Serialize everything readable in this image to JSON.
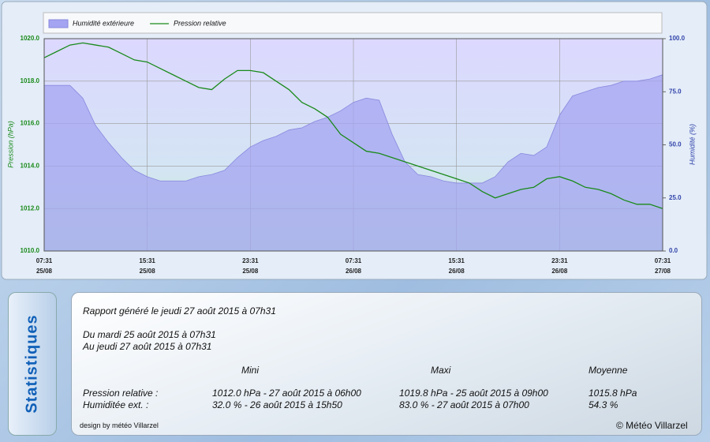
{
  "chart_data": {
    "type": "line",
    "legend": "top",
    "categories": [
      "07:31",
      null,
      null,
      null,
      null,
      null,
      null,
      null,
      "15:31",
      null,
      null,
      null,
      null,
      null,
      null,
      null,
      "23:31",
      null,
      null,
      null,
      null,
      null,
      null,
      null,
      "07:31",
      null,
      null,
      null,
      null,
      null,
      null,
      null,
      "15:31",
      null,
      null,
      null,
      null,
      null,
      null,
      null,
      "23:31",
      null,
      null,
      null,
      null,
      null,
      null,
      null,
      "07:31"
    ],
    "dates": [
      "25/08",
      null,
      null,
      null,
      null,
      null,
      null,
      null,
      "25/08",
      null,
      null,
      null,
      null,
      null,
      null,
      null,
      "25/08",
      null,
      null,
      null,
      null,
      null,
      null,
      null,
      "26/08",
      null,
      null,
      null,
      null,
      null,
      null,
      null,
      "26/08",
      null,
      null,
      null,
      null,
      null,
      null,
      null,
      "26/08",
      null,
      null,
      null,
      null,
      null,
      null,
      null,
      "27/08"
    ],
    "ylabel": "Pression (hPa)",
    "y2label": "Humidité (%)",
    "ylim": [
      1010,
      1020
    ],
    "yticks": [
      {
        "value": 1010,
        "label": "1010.0"
      },
      {
        "value": 1012,
        "label": "1012.0"
      },
      {
        "value": 1014,
        "label": "1014.0"
      },
      {
        "value": 1016,
        "label": "1016.0"
      },
      {
        "value": 1018,
        "label": "1018.0"
      },
      {
        "value": 1020,
        "label": "1020.0"
      }
    ],
    "y2lim": [
      0,
      100
    ],
    "y2ticks": [
      {
        "value": 0,
        "label": "0.0"
      },
      {
        "value": 25,
        "label": "25.0"
      },
      {
        "value": 50,
        "label": "50.0"
      },
      {
        "value": 75,
        "label": "75.0"
      },
      {
        "value": 100,
        "label": "100.0"
      }
    ],
    "grid": true,
    "series": [
      {
        "name": "Humidité extérieure",
        "color": "#a4a4f2",
        "axis": "y2",
        "style": "area",
        "values": [
          78,
          78,
          78,
          72,
          59,
          51,
          44,
          38,
          35,
          33,
          33,
          33,
          35,
          36,
          38,
          44,
          49,
          52,
          54,
          57,
          58,
          61,
          63,
          66,
          70,
          72,
          71,
          55,
          42,
          36,
          35,
          33,
          32,
          32,
          32,
          35,
          42,
          46,
          45,
          49,
          64,
          73,
          75,
          77,
          78,
          80,
          80,
          81,
          83
        ]
      },
      {
        "name": "Pression relative",
        "color": "#1a8a1a",
        "style": "line",
        "values": [
          1019.1,
          1019.4,
          1019.7,
          1019.8,
          1019.7,
          1019.6,
          1019.3,
          1019.0,
          1018.9,
          1018.6,
          1018.3,
          1018.0,
          1017.7,
          1017.6,
          1018.1,
          1018.5,
          1018.5,
          1018.4,
          1018.0,
          1017.6,
          1017.0,
          1016.7,
          1016.3,
          1015.5,
          1015.1,
          1014.7,
          1014.6,
          1014.4,
          1014.2,
          1014.0,
          1013.8,
          1013.6,
          1013.4,
          1013.2,
          1012.8,
          1012.5,
          1012.7,
          1012.9,
          1013.0,
          1013.4,
          1013.5,
          1013.3,
          1013.0,
          1012.9,
          1012.7,
          1012.4,
          1012.2,
          1012.2,
          1012.0
        ]
      }
    ]
  },
  "stats": {
    "tab": "Statistiques",
    "generated": "Rapport généré le jeudi 27 août 2015 à 07h31",
    "from": "Du mardi 25 août 2015 à 07h31",
    "to": "Au jeudi 27 août 2015 à 07h31",
    "columns": [
      "Mini",
      "Maxi",
      "Moyenne"
    ],
    "rows": [
      [
        "Pression relative :",
        "1012.0 hPa - 27 août 2015 à 06h00",
        "1019.8 hPa - 25 août 2015 à 09h00",
        "1015.8 hPa"
      ],
      [
        "Humiditée ext. :",
        "32.0 % - 26 août 2015 à 15h50",
        "83.0 % - 27 août 2015 à 07h00",
        "54.3 %"
      ]
    ],
    "design": "design by météo Villarzel",
    "copyright": "© Météo Villarzel"
  }
}
